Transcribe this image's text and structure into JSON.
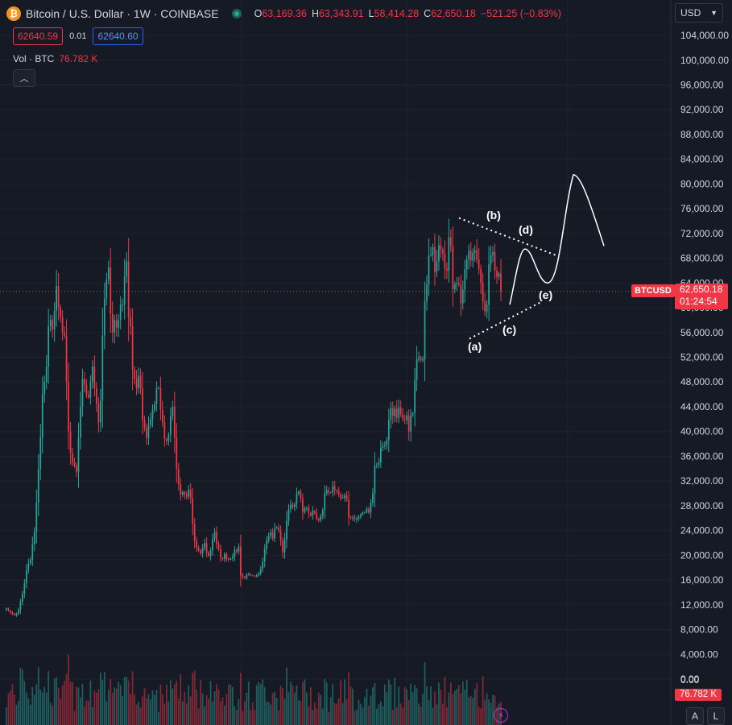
{
  "header": {
    "logo_icon": "bitcoin-icon",
    "symbol_title": "Bitcoin / U.S. Dollar · 1W · COINBASE",
    "status_icon": "market-open-icon",
    "ohlc": {
      "o_label": "O",
      "o": "63,169.36",
      "h_label": "H",
      "h": "63,343.91",
      "l_label": "L",
      "l": "58,414.28",
      "c_label": "C",
      "c": "62,650.18",
      "change": "−521.25 (−0.83%)"
    }
  },
  "trade": {
    "sell": "62640.59",
    "spread": "0.01",
    "buy": "62640.60"
  },
  "volume": {
    "label": "Vol · BTC",
    "value": "76.782 K",
    "collapse_icon": "chevron-up-icon"
  },
  "currency": {
    "label": "USD",
    "icon": "chevron-down-icon"
  },
  "price_tag": {
    "symbol": "BTCUSD",
    "price": "62,650.18",
    "countdown": "01:24:54"
  },
  "volume_tag": "76.782 K",
  "axis_buttons": {
    "auto": "A",
    "log": "L"
  },
  "flash_icon": "lightning-icon",
  "colors": {
    "up": "#26a69a",
    "down": "#f23645",
    "annotation": "#ffffff",
    "background": "#161a25"
  },
  "chart_data": {
    "type": "candlestick",
    "ylim": [
      0,
      106000
    ],
    "y_ticks": [
      "104,000.00",
      "100,000.00",
      "96,000.00",
      "92,000.00",
      "88,000.00",
      "84,000.00",
      "80,000.00",
      "76,000.00",
      "72,000.00",
      "68,000.00",
      "64,000.00",
      "60,000.00",
      "56,000.00",
      "52,000.00",
      "48,000.00",
      "44,000.00",
      "40,000.00",
      "36,000.00",
      "32,000.00",
      "28,000.00",
      "24,000.00",
      "20,000.00",
      "16,000.00",
      "12,000.00",
      "8,000.00",
      "4,000.00",
      "0.00"
    ],
    "last_price": 62650.18,
    "closes": [
      11400,
      11100,
      10800,
      10500,
      10300,
      10600,
      11200,
      12500,
      13800,
      15500,
      17600,
      18700,
      19300,
      21800,
      23800,
      28500,
      34000,
      39000,
      46000,
      48000,
      50500,
      57000,
      58000,
      56500,
      59500,
      63500,
      60000,
      58500,
      56000,
      55500,
      48000,
      40000,
      36500,
      35000,
      34500,
      33500,
      39000,
      44000,
      48500,
      47500,
      46000,
      45500,
      48000,
      50500,
      47000,
      44500,
      41500,
      45000,
      55500,
      61500,
      64500,
      66500,
      59000,
      56000,
      58000,
      56800,
      58000,
      60500,
      60500,
      65000,
      67500,
      58500,
      57000,
      50000,
      48500,
      47000,
      49000,
      47000,
      41800,
      40600,
      39000,
      41000,
      42000,
      43500,
      44500,
      47000,
      47000,
      43500,
      41500,
      38800,
      38500,
      39500,
      42500,
      44000,
      39000,
      34000,
      31500,
      29800,
      30200,
      29800,
      29500,
      30600,
      29200,
      25000,
      22300,
      21200,
      20800,
      20300,
      21200,
      22000,
      20400,
      19900,
      20800,
      22600,
      23800,
      21800,
      21000,
      19600,
      19400,
      20200,
      19400,
      19300,
      19500,
      19800,
      20900,
      20600,
      21400,
      16800,
      16500,
      16300,
      16900,
      17000,
      16800,
      16700,
      16600,
      16800,
      17100,
      17800,
      19000,
      21000,
      22400,
      23200,
      23700,
      22700,
      24300,
      24500,
      24000,
      22300,
      20500,
      22600,
      25600,
      27500,
      28200,
      27800,
      28300,
      30000,
      30300,
      29200,
      27000,
      27600,
      27700,
      26800,
      26400,
      27200,
      26800,
      25900,
      25700,
      26400,
      27300,
      30000,
      30500,
      30200,
      30200,
      31200,
      30500,
      30400,
      29800,
      29200,
      29300,
      29700,
      29000,
      26100,
      26000,
      26100,
      25800,
      25900,
      26200,
      26600,
      26900,
      27000,
      27500,
      26900,
      28500,
      30000,
      34500,
      34600,
      35000,
      37400,
      37700,
      37800,
      38600,
      41900,
      43800,
      42500,
      43700,
      42200,
      43900,
      42800,
      42000,
      41900,
      42600,
      40000,
      42600,
      43000,
      48300,
      51700,
      52000,
      51500,
      51700,
      61000,
      63800,
      68400,
      68500,
      69800,
      65800,
      67500,
      70100,
      69400,
      68800,
      66300,
      66000,
      71400,
      70000,
      63000,
      63800,
      64000,
      63700,
      60700,
      62900,
      66200,
      67800,
      69200,
      67600,
      68900,
      69300,
      67800,
      66200,
      64000,
      61000,
      59400,
      60500,
      67000,
      68500,
      69000,
      66000,
      65000,
      65600,
      62650
    ],
    "volume_axis_zero": "0.00",
    "annotations": {
      "wave_labels": [
        "(a)",
        "(b)",
        "(c)",
        "(d)",
        "(e)"
      ],
      "triangle_upper_line": [
        [
          74500,
          1
        ],
        [
          68500,
          0
        ]
      ],
      "triangle_lower_line": [
        [
          55000,
          1
        ],
        [
          61000,
          0
        ]
      ],
      "projected_path": [
        60500,
        69500,
        64000,
        81500,
        70000
      ]
    }
  }
}
